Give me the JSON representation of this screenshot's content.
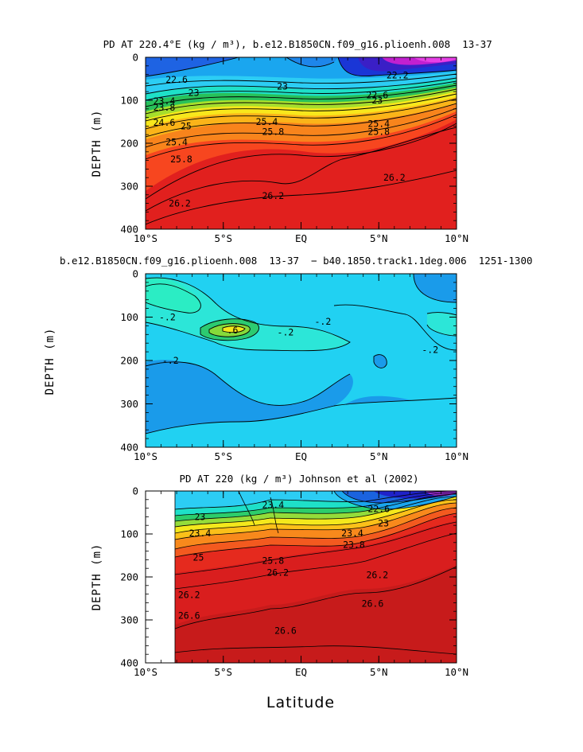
{
  "x_label": "Latitude",
  "chart_data": [
    {
      "type": "contour",
      "title": "PD AT 220.4°E (kg / m³), b.e12.B1850CN.f09_g16.plioenh.008  13-37 ",
      "ylabel": "DEPTH (m)",
      "xlabel": "Latitude",
      "xlim": [
        -10,
        10
      ],
      "ylim": [
        400,
        0
      ],
      "x_ticks": [
        "10°S",
        "5°S",
        "EQ",
        "5°N",
        "10°N"
      ],
      "y_ticks": [
        "0",
        "100",
        "200",
        "300",
        "400"
      ],
      "contour_labels": [
        {
          "text": "22.6",
          "lat": -8.0,
          "depth": 52
        },
        {
          "text": "23",
          "lat": -6.9,
          "depth": 82
        },
        {
          "text": "23",
          "lat": -1.2,
          "depth": 68
        },
        {
          "text": "23.4",
          "lat": -8.8,
          "depth": 102
        },
        {
          "text": "23.8",
          "lat": -8.8,
          "depth": 117
        },
        {
          "text": "24.6",
          "lat": -8.8,
          "depth": 152
        },
        {
          "text": "25",
          "lat": -7.4,
          "depth": 160
        },
        {
          "text": "25.4",
          "lat": -8.0,
          "depth": 197
        },
        {
          "text": "25.8",
          "lat": -7.7,
          "depth": 237
        },
        {
          "text": "26.2",
          "lat": -7.8,
          "depth": 340
        },
        {
          "text": "26.2",
          "lat": -1.8,
          "depth": 322
        },
        {
          "text": "26.2",
          "lat": 6.0,
          "depth": 280
        },
        {
          "text": "25.4",
          "lat": -2.2,
          "depth": 150
        },
        {
          "text": "25.8",
          "lat": -1.8,
          "depth": 173
        },
        {
          "text": "22.2",
          "lat": 6.2,
          "depth": 42
        },
        {
          "text": "22.6",
          "lat": 4.9,
          "depth": 88
        },
        {
          "text": "23",
          "lat": 4.9,
          "depth": 100
        },
        {
          "text": "25.4",
          "lat": 5.0,
          "depth": 155
        },
        {
          "text": "25.8",
          "lat": 5.0,
          "depth": 173
        }
      ]
    },
    {
      "type": "contour",
      "title": "b.e12.B1850CN.f09_g16.plioenh.008  13-37  − b40.1850.track1.1deg.006  1251-1300 ",
      "ylabel": "DEPTH (m)",
      "xlabel": "Latitude",
      "xlim": [
        -10,
        10
      ],
      "ylim": [
        400,
        0
      ],
      "x_ticks": [
        "10°S",
        "5°S",
        "EQ",
        "5°N",
        "10°N"
      ],
      "y_ticks": [
        "0",
        "100",
        "200",
        "300",
        "400"
      ],
      "contour_labels": [
        {
          "text": "-.2",
          "lat": -8.6,
          "depth": 100
        },
        {
          "text": "-.2",
          "lat": -8.4,
          "depth": 200
        },
        {
          "text": "-.2",
          "lat": 1.4,
          "depth": 110
        },
        {
          "text": "-.2",
          "lat": -1.0,
          "depth": 135
        },
        {
          "text": "-.2",
          "lat": 8.3,
          "depth": 175
        },
        {
          "text": ".6",
          "lat": -4.4,
          "depth": 130
        }
      ]
    },
    {
      "type": "contour",
      "title": "PD AT 220 (kg / m³) Johnson et al (2002)",
      "ylabel": "DEPTH (m)",
      "xlabel": "Latitude",
      "xlim": [
        -10,
        10
      ],
      "ylim": [
        400,
        0
      ],
      "x_ticks": [
        "10°S",
        "5°S",
        "EQ",
        "5°N",
        "10°N"
      ],
      "y_ticks": [
        "0",
        "100",
        "200",
        "300",
        "400"
      ],
      "contour_labels": [
        {
          "text": "23",
          "lat": -6.5,
          "depth": 60
        },
        {
          "text": "23.4",
          "lat": -6.5,
          "depth": 98
        },
        {
          "text": "25",
          "lat": -6.6,
          "depth": 155
        },
        {
          "text": "26.2",
          "lat": -7.2,
          "depth": 242
        },
        {
          "text": "26.6",
          "lat": -7.2,
          "depth": 290
        },
        {
          "text": "26.6",
          "lat": -1.0,
          "depth": 325
        },
        {
          "text": "26.6",
          "lat": 4.6,
          "depth": 262
        },
        {
          "text": "26.2",
          "lat": -1.5,
          "depth": 190
        },
        {
          "text": "25.8",
          "lat": -1.8,
          "depth": 162
        },
        {
          "text": "22.6",
          "lat": 5.0,
          "depth": 42
        },
        {
          "text": "23",
          "lat": 5.3,
          "depth": 75
        },
        {
          "text": "23.4",
          "lat": 3.3,
          "depth": 98
        },
        {
          "text": "23.8",
          "lat": 3.4,
          "depth": 125
        },
        {
          "text": "26.2",
          "lat": 4.9,
          "depth": 195
        },
        {
          "text": "23.4",
          "lat": -1.8,
          "depth": 32
        }
      ]
    }
  ]
}
